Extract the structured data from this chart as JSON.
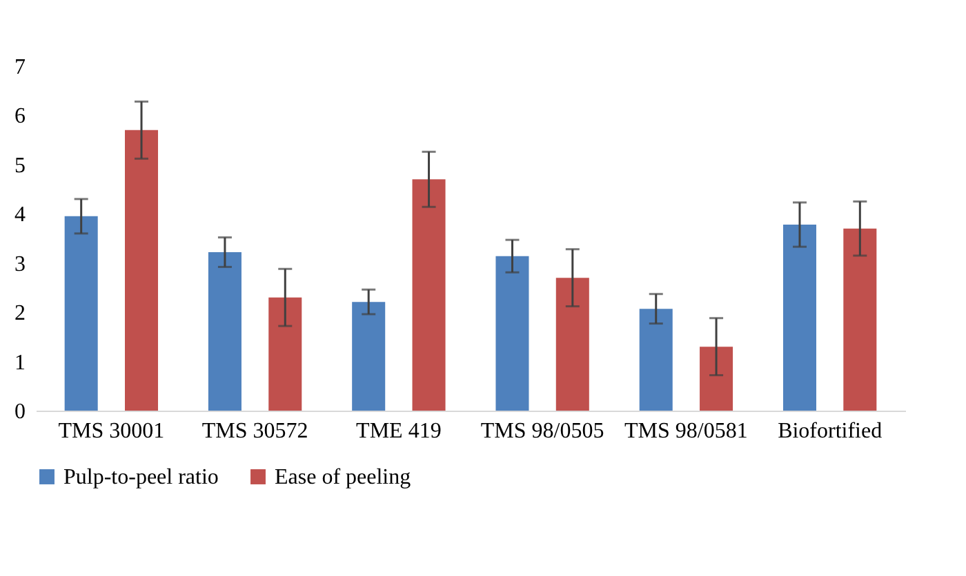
{
  "chart_data": {
    "type": "bar",
    "categories": [
      "TMS 30001",
      "TMS 30572",
      "TME 419",
      "TMS 98/0505",
      "TMS 98/0581",
      "Biofortified"
    ],
    "series": [
      {
        "name": "Pulp-to-peel ratio",
        "color": "#4f81bd",
        "values": [
          3.95,
          3.22,
          2.21,
          3.14,
          2.07,
          3.78
        ],
        "errors": [
          0.35,
          0.3,
          0.25,
          0.33,
          0.3,
          0.45
        ]
      },
      {
        "name": "Ease of peeling",
        "color": "#c0504d",
        "values": [
          5.7,
          2.3,
          4.7,
          2.7,
          1.3,
          3.7
        ],
        "errors": [
          0.58,
          0.58,
          0.56,
          0.58,
          0.58,
          0.55
        ]
      }
    ],
    "ylim": [
      0,
      7
    ],
    "yticks": [
      0,
      1,
      2,
      3,
      4,
      5,
      6,
      7
    ],
    "grid": false,
    "legend": "bottom"
  }
}
